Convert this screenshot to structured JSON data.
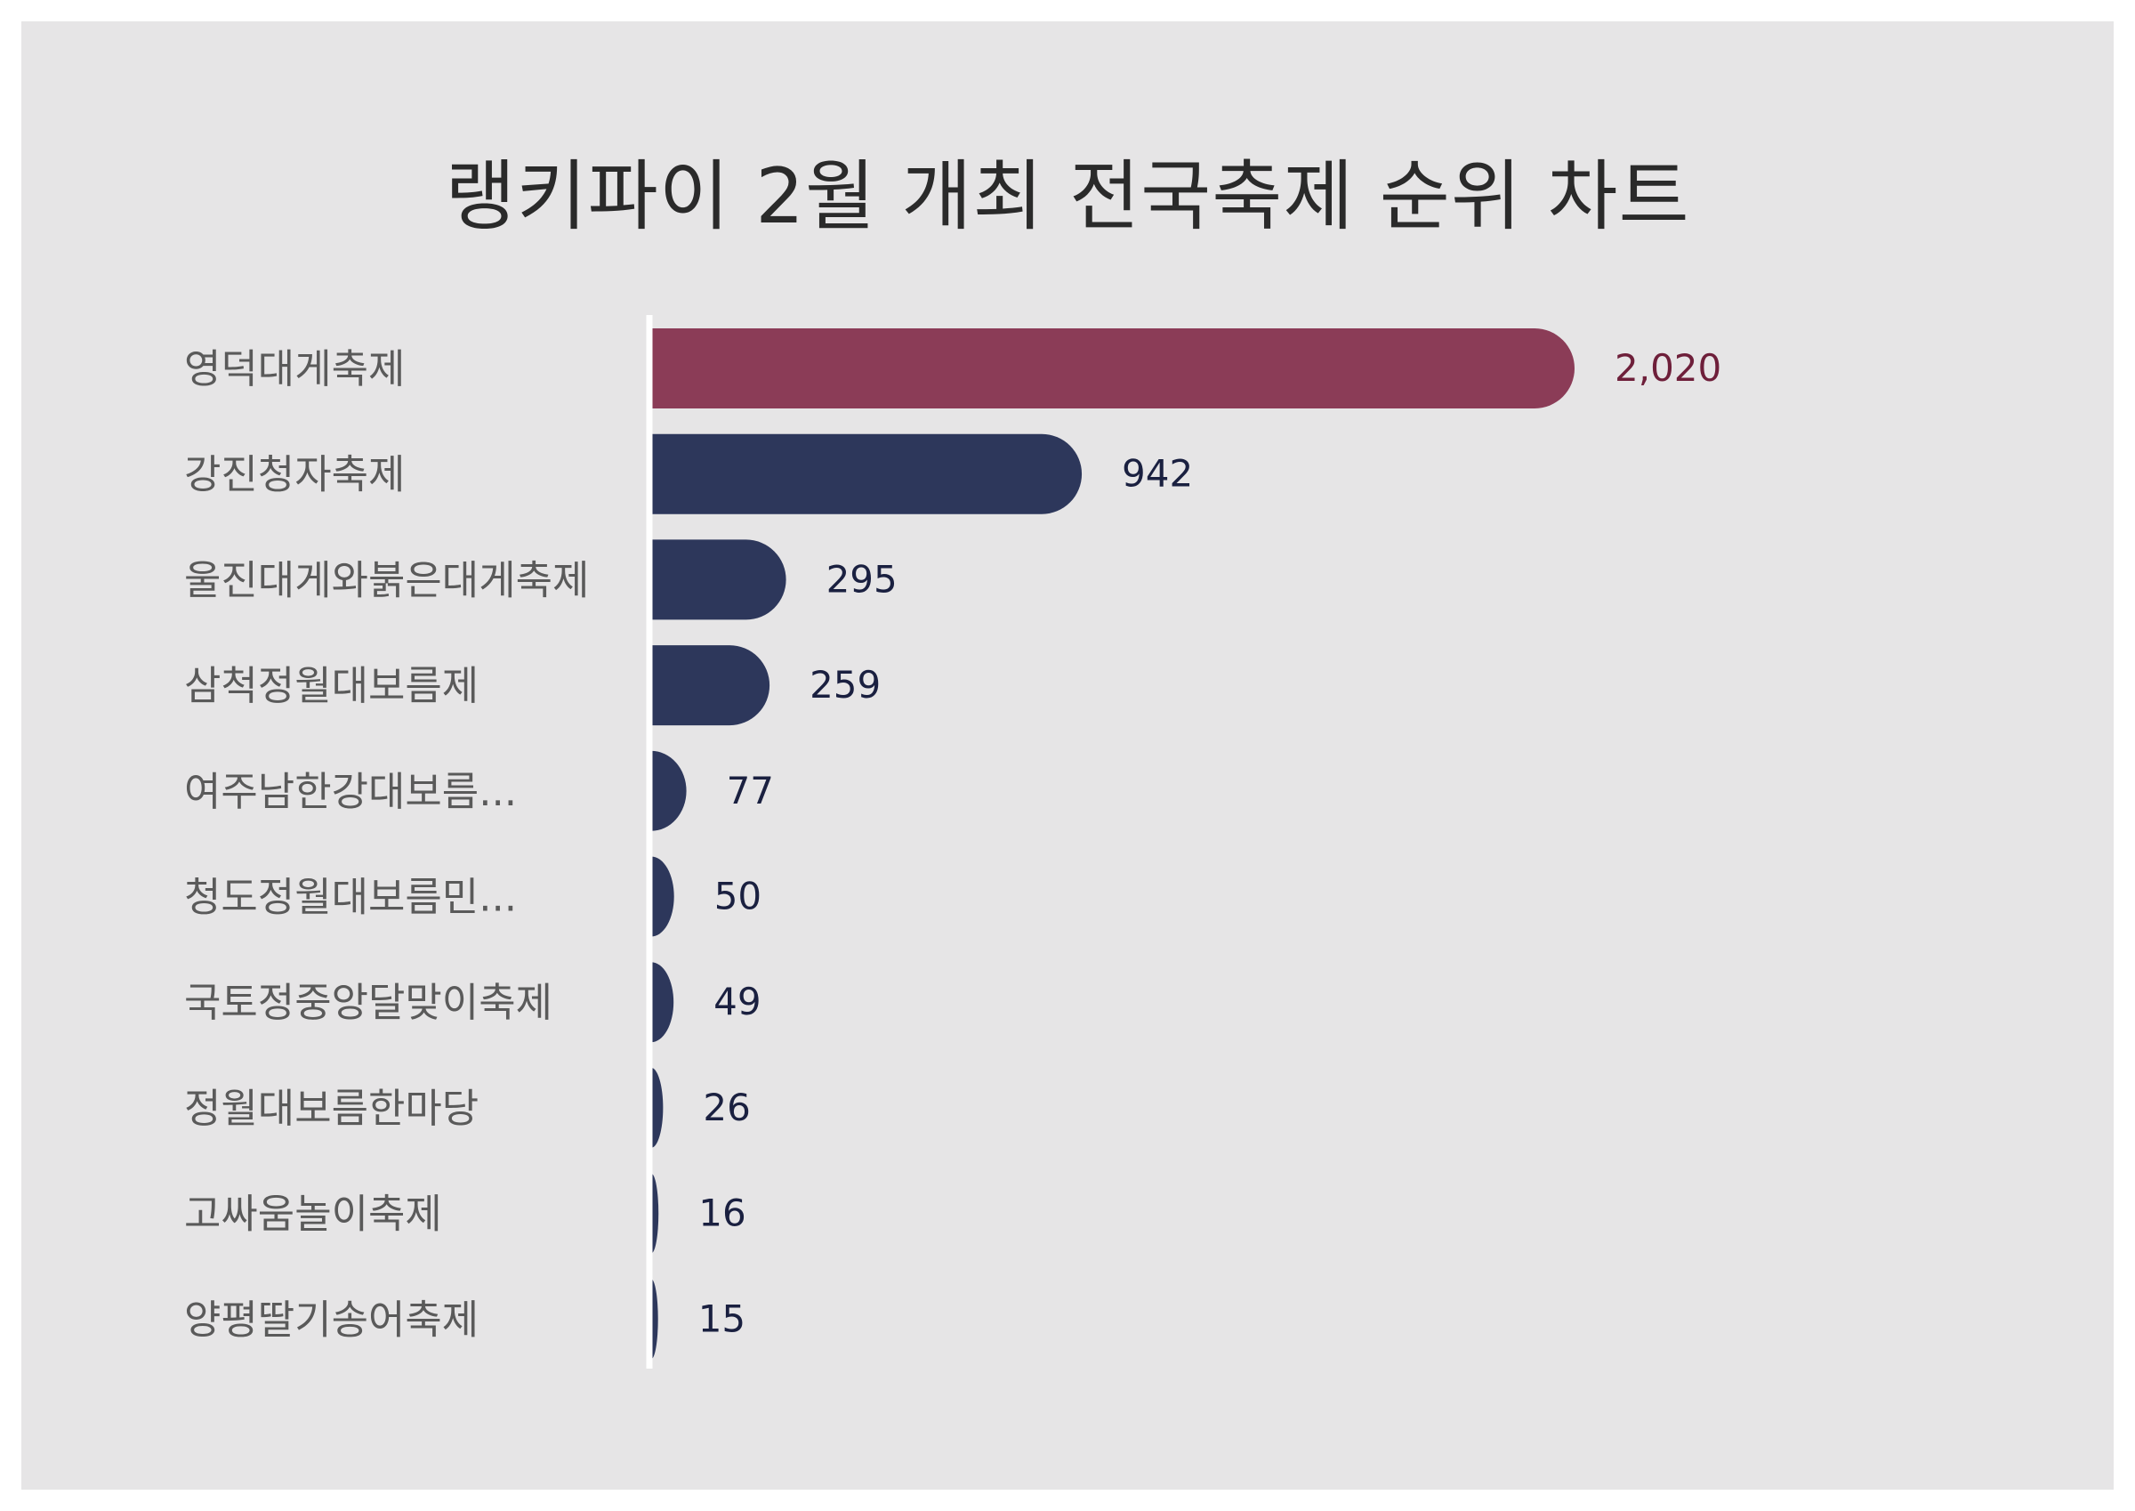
{
  "colors": {
    "background": "#e6e5e6",
    "highlight_bar": "#8b3c57",
    "highlight_label": "#6e1f3a",
    "bar": "#2d375b",
    "value_label": "#1a2040",
    "category_label": "#5a5a5a",
    "axis_line": "#ffffff"
  },
  "chart_data": {
    "type": "bar",
    "orientation": "horizontal",
    "title": "랭키파이 2월 개최 전국축제 순위 차트",
    "categories": [
      "영덕대게축제",
      "강진청자축제",
      "울진대게와붉은대게축제",
      "삼척정월대보름제",
      "여주남한강대보름...",
      "청도정월대보름민...",
      "국토정중앙달맞이축제",
      "정월대보름한마당",
      "고싸움놀이축제",
      "양평딸기송어축제"
    ],
    "values": [
      2020,
      942,
      295,
      259,
      77,
      50,
      49,
      26,
      16,
      15
    ],
    "value_labels": [
      "2,020",
      "942",
      "295",
      "259",
      "77",
      "50",
      "49",
      "26",
      "16",
      "15"
    ],
    "highlight_index": 0,
    "grid": false,
    "legend": "none"
  }
}
